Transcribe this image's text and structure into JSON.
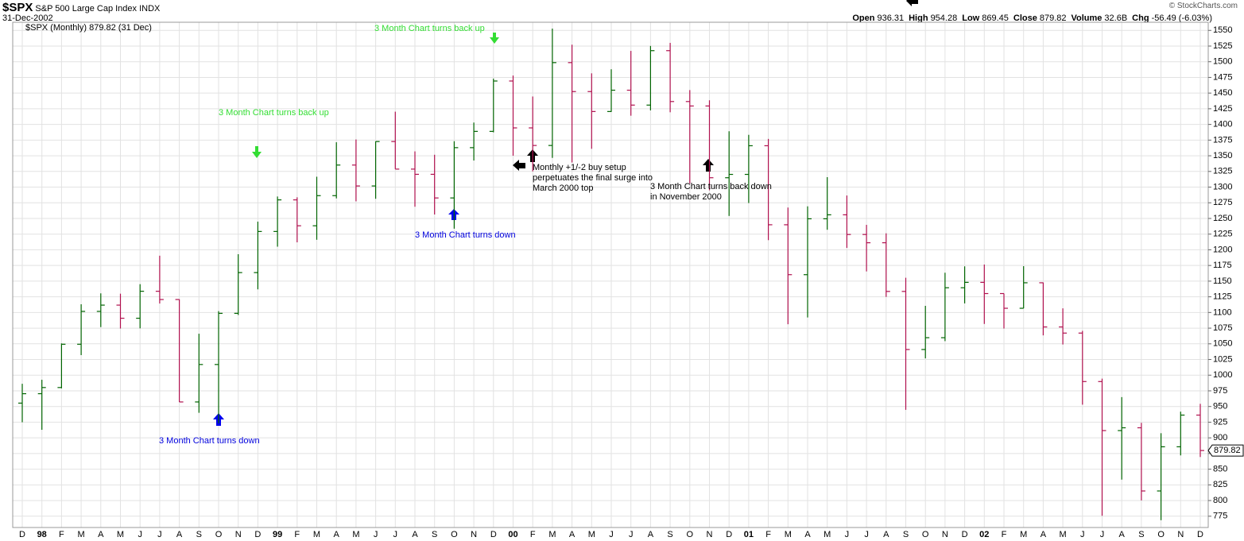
{
  "header": {
    "symbol": "$SPX",
    "name": "S&P 500 Large Cap Index",
    "exchange": "INDX",
    "date": "31-Dec-2002",
    "copyright": "© StockCharts.com",
    "stats": [
      {
        "label": "Open",
        "value": "936.31"
      },
      {
        "label": "High",
        "value": "954.28"
      },
      {
        "label": "Low",
        "value": "869.45"
      },
      {
        "label": "Close",
        "value": "879.82"
      },
      {
        "label": "Volume",
        "value": "32.6B"
      },
      {
        "label": "Chg",
        "value": "-56.49 (-6.03%)"
      }
    ]
  },
  "chart_data": {
    "type": "ohlc",
    "legend": "$SPX (Monthly) 879.82 (31 Dec)",
    "last_label": "879.82",
    "up_color": "#006400",
    "down_color": "#b0104e",
    "grid": true,
    "ylim": [
      757,
      1563
    ],
    "yticks": [
      775,
      800,
      825,
      850,
      875,
      900,
      925,
      950,
      975,
      1000,
      1025,
      1050,
      1075,
      1100,
      1125,
      1150,
      1175,
      1200,
      1225,
      1250,
      1275,
      1300,
      1325,
      1350,
      1375,
      1400,
      1425,
      1450,
      1475,
      1500,
      1525,
      1550
    ],
    "categories": [
      "D",
      "98",
      "F",
      "M",
      "A",
      "M",
      "J",
      "J",
      "A",
      "S",
      "O",
      "N",
      "D",
      "99",
      "F",
      "M",
      "A",
      "M",
      "J",
      "J",
      "A",
      "S",
      "O",
      "N",
      "D",
      "00",
      "F",
      "M",
      "A",
      "M",
      "J",
      "J",
      "A",
      "S",
      "O",
      "N",
      "D",
      "01",
      "F",
      "M",
      "A",
      "M",
      "J",
      "J",
      "A",
      "S",
      "O",
      "N",
      "D",
      "02",
      "F",
      "M",
      "A",
      "M",
      "J",
      "J",
      "A",
      "S",
      "O",
      "N",
      "D"
    ],
    "open": [
      955.4,
      970.43,
      980.28,
      1049.34,
      1101.75,
      1111.75,
      1090.82,
      1133.84,
      1120.67,
      957.28,
      1017.01,
      1098.67,
      1163.63,
      1229.23,
      1279.64,
      1238.33,
      1286.37,
      1335.18,
      1301.84,
      1372.71,
      1328.72,
      1320.41,
      1282.71,
      1362.93,
      1388.91,
      1469.25,
      1394.46,
      1366.42,
      1498.58,
      1452.43,
      1420.6,
      1454.6,
      1430.83,
      1517.68,
      1436.51,
      1429.4,
      1314.95,
      1320.28,
      1366.01,
      1239.94,
      1160.33,
      1249.46,
      1255.82,
      1224.42,
      1211.23,
      1133.58,
      1040.94,
      1059.78,
      1139.45,
      1148.08,
      1130.2,
      1106.73,
      1147.39,
      1076.92,
      1067.14,
      989.82,
      911.62,
      916.07,
      815.28,
      885.76,
      936.31
    ],
    "high": [
      986.25,
      992.65,
      1050.66,
      1113.13,
      1130.52,
      1130,
      1145.15,
      1190.58,
      1121,
      1066.11,
      1102.18,
      1192.97,
      1244.93,
      1285,
      1283.75,
      1316.55,
      1371.56,
      1375.98,
      1372.93,
      1420.33,
      1357,
      1351.6,
      1373.2,
      1403,
      1473.1,
      1478,
      1444.55,
      1552.87,
      1527.19,
      1481.5,
      1488,
      1517.3,
      1525.2,
      1530.1,
      1454.8,
      1438.5,
      1389.1,
      1383.4,
      1376.9,
      1267.4,
      1269.3,
      1315.9,
      1286.6,
      1239.8,
      1226.3,
      1155.4,
      1110.6,
      1163.4,
      1173.6,
      1176.5,
      1130.2,
      1173.9,
      1147.8,
      1106.6,
      1070.7,
      994.5,
      965,
      924,
      907.4,
      941.8,
      954.28
    ],
    "low": [
      924.92,
      912.83,
      979,
      1032,
      1076.7,
      1074.4,
      1074.7,
      1114.3,
      957.28,
      939.98,
      923.32,
      1096,
      1136.89,
      1205,
      1211.9,
      1216,
      1282,
      1277.3,
      1281.4,
      1328.8,
      1268.7,
      1256.3,
      1233.7,
      1342.4,
      1387.4,
      1350.1,
      1325.1,
      1346.6,
      1339.4,
      1361.1,
      1420,
      1413.9,
      1422.4,
      1419.4,
      1305.8,
      1294.9,
      1254,
      1274.6,
      1215.4,
      1081.2,
      1091.99,
      1232,
      1203,
      1165.5,
      1124.9,
      944.75,
      1026.8,
      1054.3,
      1114.5,
      1081.7,
      1074.4,
      1106.73,
      1063.5,
      1048.96,
      952.9,
      775.68,
      833.4,
      800.2,
      768.63,
      872,
      869.45
    ],
    "close": [
      970.43,
      980.28,
      1049.34,
      1101.75,
      1111.75,
      1090.82,
      1133.84,
      1120.67,
      957.28,
      1017.01,
      1098.67,
      1163.63,
      1229.23,
      1279.64,
      1238.33,
      1286.37,
      1335.18,
      1301.84,
      1372.71,
      1328.72,
      1320.41,
      1282.71,
      1362.93,
      1388.91,
      1469.25,
      1394.46,
      1366.42,
      1498.58,
      1452.43,
      1420.6,
      1454.6,
      1430.83,
      1517.68,
      1436.51,
      1429.4,
      1314.95,
      1320.28,
      1366.01,
      1239.94,
      1160.33,
      1249.46,
      1255.82,
      1224.42,
      1211.23,
      1133.58,
      1040.94,
      1059.78,
      1139.45,
      1148.08,
      1130.2,
      1106.73,
      1147.39,
      1076.92,
      1067.14,
      989.82,
      911.62,
      916.07,
      815.28,
      885.76,
      936.31,
      879.82
    ],
    "annotations": [
      {
        "lines": [
          "3 Month Chart turns back up"
        ],
        "color": "#33dd33"
      },
      {
        "lines": [
          "3 Month Chart turns back up"
        ],
        "color": "#33dd33"
      },
      {
        "lines": [
          "3 Month Chart turns down"
        ],
        "color": "#0000dd"
      },
      {
        "lines": [
          "3 Month Chart turns down"
        ],
        "color": "#0000dd"
      },
      {
        "lines": [
          "Monthly +1/-2 buy setup",
          "perpetuates the final surge into",
          "March 2000 top"
        ],
        "color": "#000000"
      },
      {
        "lines": [
          "3 Month Chart turns back down",
          "in November 2000"
        ],
        "color": "#000000"
      }
    ]
  }
}
